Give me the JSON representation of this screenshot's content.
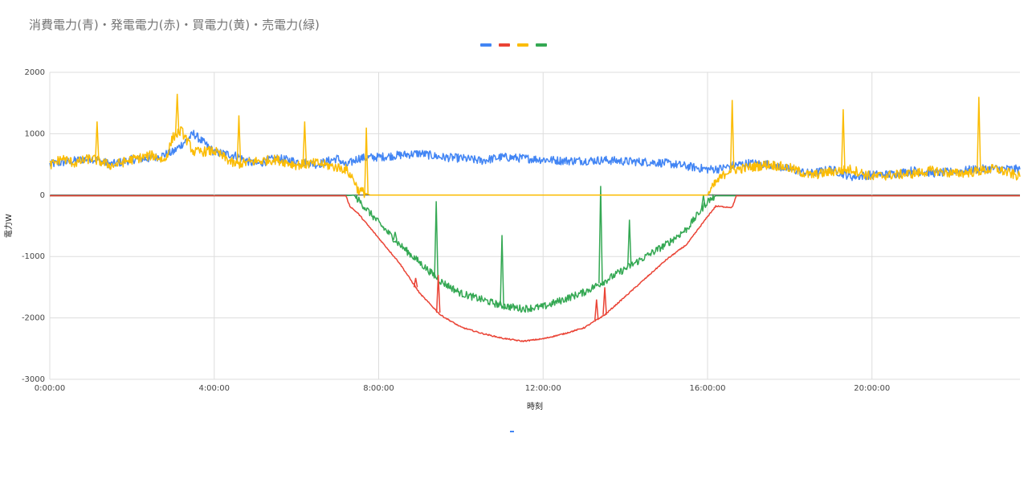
{
  "chart_data": {
    "type": "line",
    "title": "消費電力(青)・発電電力(赤)・買電力(黄)・売電力(緑)",
    "xlabel": "時刻",
    "ylabel": "電力W",
    "xlim_hours": [
      0,
      23.6
    ],
    "ylim": [
      -3000,
      2000
    ],
    "y_ticks": [
      2000,
      1000,
      0,
      -1000,
      -2000,
      -3000
    ],
    "x_ticks": [
      "0:00:00",
      "4:00:00",
      "8:00:00",
      "12:00:00",
      "16:00:00",
      "20:00:00"
    ],
    "x_tick_hours": [
      0,
      4,
      8,
      12,
      16,
      20
    ],
    "grid": true,
    "legend_position": "top",
    "series": [
      {
        "color": "#4285f4",
        "x": [
          0,
          0.5,
          1,
          1.5,
          2,
          2.5,
          3,
          3.5,
          4,
          4.5,
          5,
          5.5,
          6,
          6.5,
          7,
          7.2,
          7.5,
          8,
          8.5,
          9,
          9.5,
          10,
          10.5,
          11,
          11.5,
          12,
          12.5,
          13,
          13.5,
          14,
          14.5,
          15,
          15.5,
          16,
          16.3,
          16.6,
          17,
          17.5,
          18,
          18.5,
          19,
          19.5,
          20,
          20.5,
          21,
          21.5,
          22,
          22.5,
          23,
          23.6
        ],
        "y": [
          500,
          550,
          600,
          500,
          580,
          600,
          700,
          1000,
          700,
          650,
          500,
          600,
          550,
          500,
          600,
          480,
          600,
          620,
          650,
          680,
          620,
          600,
          560,
          620,
          600,
          580,
          560,
          560,
          570,
          550,
          540,
          520,
          470,
          420,
          430,
          480,
          520,
          500,
          420,
          350,
          420,
          300,
          330,
          340,
          400,
          360,
          380,
          420,
          430,
          420
        ]
      },
      {
        "color": "#ea4335",
        "x": [
          0,
          4,
          7.2,
          7.3,
          7.5,
          8,
          8.5,
          9,
          9.5,
          10,
          10.5,
          11,
          11.5,
          12,
          12.5,
          13,
          13.5,
          14,
          14.5,
          15,
          15.5,
          16,
          16.2,
          16.6,
          16.7,
          17,
          20,
          23.6
        ],
        "y": [
          -10,
          -10,
          -10,
          -180,
          -300,
          -700,
          -1100,
          -1600,
          -1950,
          -2150,
          -2250,
          -2330,
          -2380,
          -2340,
          -2260,
          -2160,
          -1950,
          -1650,
          -1350,
          -1050,
          -800,
          -350,
          -180,
          -200,
          -10,
          -10,
          -10,
          -10
        ],
        "spikes": [
          {
            "x": 9.45,
            "y": -1300
          },
          {
            "x": 13.3,
            "y": -1700
          },
          {
            "x": 13.5,
            "y": -1500
          },
          {
            "x": 8.9,
            "y": -1350
          }
        ]
      },
      {
        "color": "#fbbc04",
        "x": [
          0,
          0.3,
          0.6,
          1,
          1.5,
          2,
          2.5,
          2.8,
          3,
          3.2,
          3.5,
          4,
          4.5,
          5,
          5.5,
          6,
          6.5,
          7,
          7.2,
          7.4,
          7.5,
          7.8,
          8,
          16.0,
          16.2,
          16.5,
          16.7,
          17,
          17.5,
          18,
          18.5,
          19,
          19.5,
          20,
          20.5,
          21,
          21.5,
          22,
          22.5,
          23,
          23.6
        ],
        "y": [
          480,
          600,
          520,
          600,
          480,
          580,
          650,
          560,
          950,
          1050,
          700,
          720,
          500,
          550,
          580,
          490,
          520,
          450,
          420,
          250,
          80,
          0,
          0,
          0,
          200,
          400,
          420,
          450,
          500,
          440,
          320,
          380,
          420,
          300,
          330,
          350,
          400,
          350,
          380,
          430,
          300
        ],
        "spikes": [
          {
            "x": 1.15,
            "y": 1200
          },
          {
            "x": 3.1,
            "y": 1650
          },
          {
            "x": 4.6,
            "y": 1300
          },
          {
            "x": 6.2,
            "y": 1200
          },
          {
            "x": 16.6,
            "y": 1550
          },
          {
            "x": 19.3,
            "y": 1400
          },
          {
            "x": 22.6,
            "y": 1600
          },
          {
            "x": 7.7,
            "y": 1100
          }
        ]
      },
      {
        "color": "#34a853",
        "x": [
          0,
          4,
          7.2,
          7.4,
          7.6,
          8,
          8.5,
          9,
          9.5,
          10,
          10.5,
          11,
          11.5,
          12,
          12.5,
          13,
          13.5,
          14,
          14.5,
          15,
          15.5,
          16,
          16.2,
          20,
          23.6
        ],
        "y": [
          -10,
          -10,
          -10,
          0,
          -150,
          -450,
          -800,
          -1100,
          -1400,
          -1600,
          -1700,
          -1800,
          -1850,
          -1820,
          -1700,
          -1580,
          -1400,
          -1200,
          -1000,
          -800,
          -550,
          -100,
          -10,
          -10,
          -10
        ],
        "spikes": [
          {
            "x": 9.4,
            "y": -100
          },
          {
            "x": 11.0,
            "y": -650
          },
          {
            "x": 13.4,
            "y": 150
          },
          {
            "x": 14.1,
            "y": -400
          },
          {
            "x": 15.9,
            "y": 0
          },
          {
            "x": 8.4,
            "y": -600
          }
        ]
      }
    ]
  }
}
